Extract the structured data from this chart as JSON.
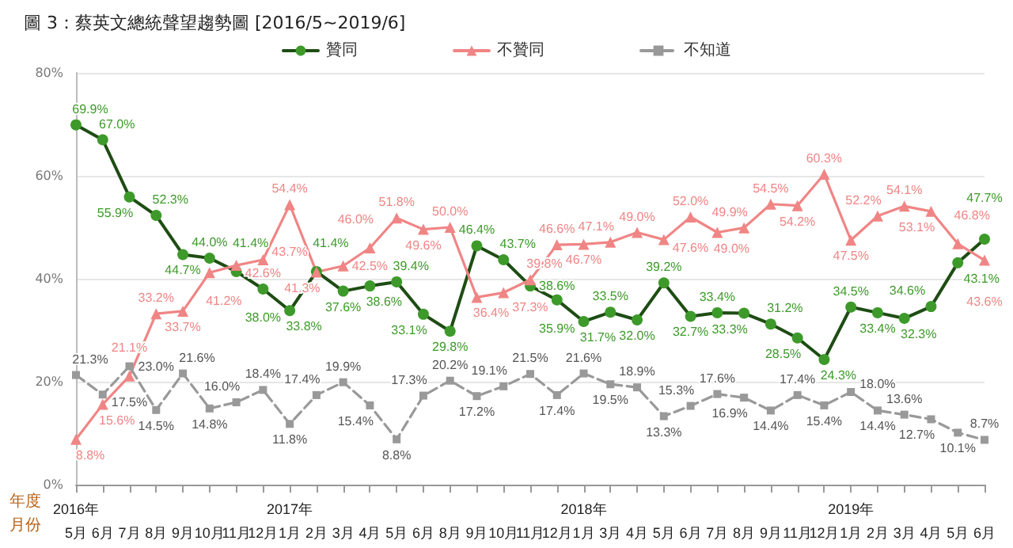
{
  "chart_data": {
    "type": "line",
    "title": "圖 3：蔡英文總統聲望趨勢圖 [2016/5~2019/6]",
    "categories": [
      "2016年\n5月",
      "6月",
      "7月",
      "8月",
      "9月",
      "10月",
      "11月",
      "12月",
      "2017年\n1月",
      "2月",
      "3月",
      "4月",
      "5月",
      "6月",
      "8月",
      "9月",
      "10月",
      "11月",
      "12月",
      "2018年\n1月",
      "3月",
      "4月",
      "5月",
      "6月",
      "7月",
      "8月",
      "9月",
      "11月",
      "12月",
      "2019年\n1月",
      "2月",
      "3月",
      "4月",
      "5月",
      "6月"
    ],
    "series": [
      {
        "name": "贊同",
        "color": "#3d9a2a",
        "marker": "circle",
        "line_style": "solid",
        "values": [
          69.9,
          67.0,
          55.9,
          52.3,
          44.7,
          44.0,
          41.4,
          38.0,
          33.8,
          41.4,
          37.6,
          38.6,
          39.4,
          33.1,
          29.8,
          46.4,
          43.7,
          38.6,
          35.9,
          31.7,
          33.5,
          32.0,
          39.2,
          32.7,
          33.4,
          33.3,
          31.2,
          28.5,
          24.3,
          34.5,
          33.4,
          32.3,
          34.6,
          43.1,
          47.7
        ],
        "value_labels": [
          "69.9%",
          "67.0%",
          "55.9%",
          "52.3%",
          "44.7%",
          "44.0%",
          "41.4%",
          "38.0%",
          "33.8%",
          "41.4%",
          "37.6%",
          "38.6%",
          "39.4%",
          "33.1%",
          "29.8%",
          "46.4%",
          "43.7%",
          "38.6%",
          "35.9%",
          "31.7%",
          "33.5%",
          "32.0%",
          "39.2%",
          "32.7%",
          "33.4%",
          "33.3%",
          "31.2%",
          "28.5%",
          "24.3%",
          "34.5%",
          "33.4%",
          "32.3%",
          "34.6%",
          "43.1%",
          "47.7%"
        ]
      },
      {
        "name": "不贊同",
        "color": "#f08585",
        "marker": "triangle",
        "line_style": "solid",
        "values": [
          8.8,
          15.6,
          21.1,
          33.2,
          33.7,
          41.2,
          42.6,
          43.7,
          54.4,
          41.3,
          42.5,
          46.0,
          51.8,
          49.6,
          50.0,
          36.4,
          37.3,
          39.8,
          46.6,
          46.7,
          47.1,
          49.0,
          47.6,
          52.0,
          49.0,
          49.9,
          54.5,
          54.2,
          60.3,
          47.5,
          52.2,
          54.1,
          53.1,
          46.8,
          43.6
        ],
        "value_labels": [
          "8.8%",
          "15.6%",
          "21.1%",
          "33.2%",
          "33.7%",
          "41.2%",
          "42.6%",
          "43.7%",
          "54.4%",
          "41.3%",
          "42.5%",
          "46.0%",
          "51.8%",
          "49.6%",
          "50.0%",
          "36.4%",
          "37.3%",
          "39.8%",
          "46.6%",
          "46.7%",
          "47.1%",
          "49.0%",
          "47.6%",
          "52.0%",
          "49.0%",
          "49.9%",
          "54.5%",
          "54.2%",
          "60.3%",
          "47.5%",
          "52.2%",
          "54.1%",
          "53.1%",
          "46.8%",
          "43.6%"
        ]
      },
      {
        "name": "不知道",
        "color": "#999999",
        "marker": "square",
        "line_style": "dashed",
        "values": [
          21.3,
          17.5,
          23.0,
          14.5,
          21.6,
          14.8,
          16.0,
          18.4,
          11.8,
          17.4,
          19.9,
          15.4,
          8.8,
          17.3,
          20.2,
          17.2,
          19.1,
          21.5,
          17.4,
          21.6,
          19.5,
          18.9,
          13.3,
          15.3,
          17.6,
          16.9,
          14.4,
          17.4,
          15.4,
          18.0,
          14.4,
          13.6,
          12.7,
          10.1,
          8.7
        ],
        "value_labels": [
          "21.3%",
          "17.5%",
          "23.0%",
          "14.5%",
          "21.6%",
          "14.8%",
          "16.0%",
          "18.4%",
          "11.8%",
          "17.4%",
          "19.9%",
          "15.4%",
          "8.8%",
          "17.3%",
          "20.2%",
          "17.2%",
          "19.1%",
          "21.5%",
          "17.4%",
          "21.6%",
          "19.5%",
          "18.9%",
          "13.3%",
          "15.3%",
          "17.6%",
          "16.9%",
          "14.4%",
          "17.4%",
          "15.4%",
          "18.0%",
          "14.4%",
          "13.6%",
          "12.7%",
          "10.1%",
          "8.7%"
        ]
      }
    ],
    "ylim": [
      0,
      80
    ],
    "yticks": [
      {
        "value": 0,
        "label": "0%"
      },
      {
        "value": 20,
        "label": "20%"
      },
      {
        "value": 40,
        "label": "40%"
      },
      {
        "value": 60,
        "label": "60%"
      },
      {
        "value": 80,
        "label": "80%"
      }
    ],
    "grid": "y",
    "legend": "top",
    "annotations": [
      "年度",
      "月份"
    ]
  }
}
